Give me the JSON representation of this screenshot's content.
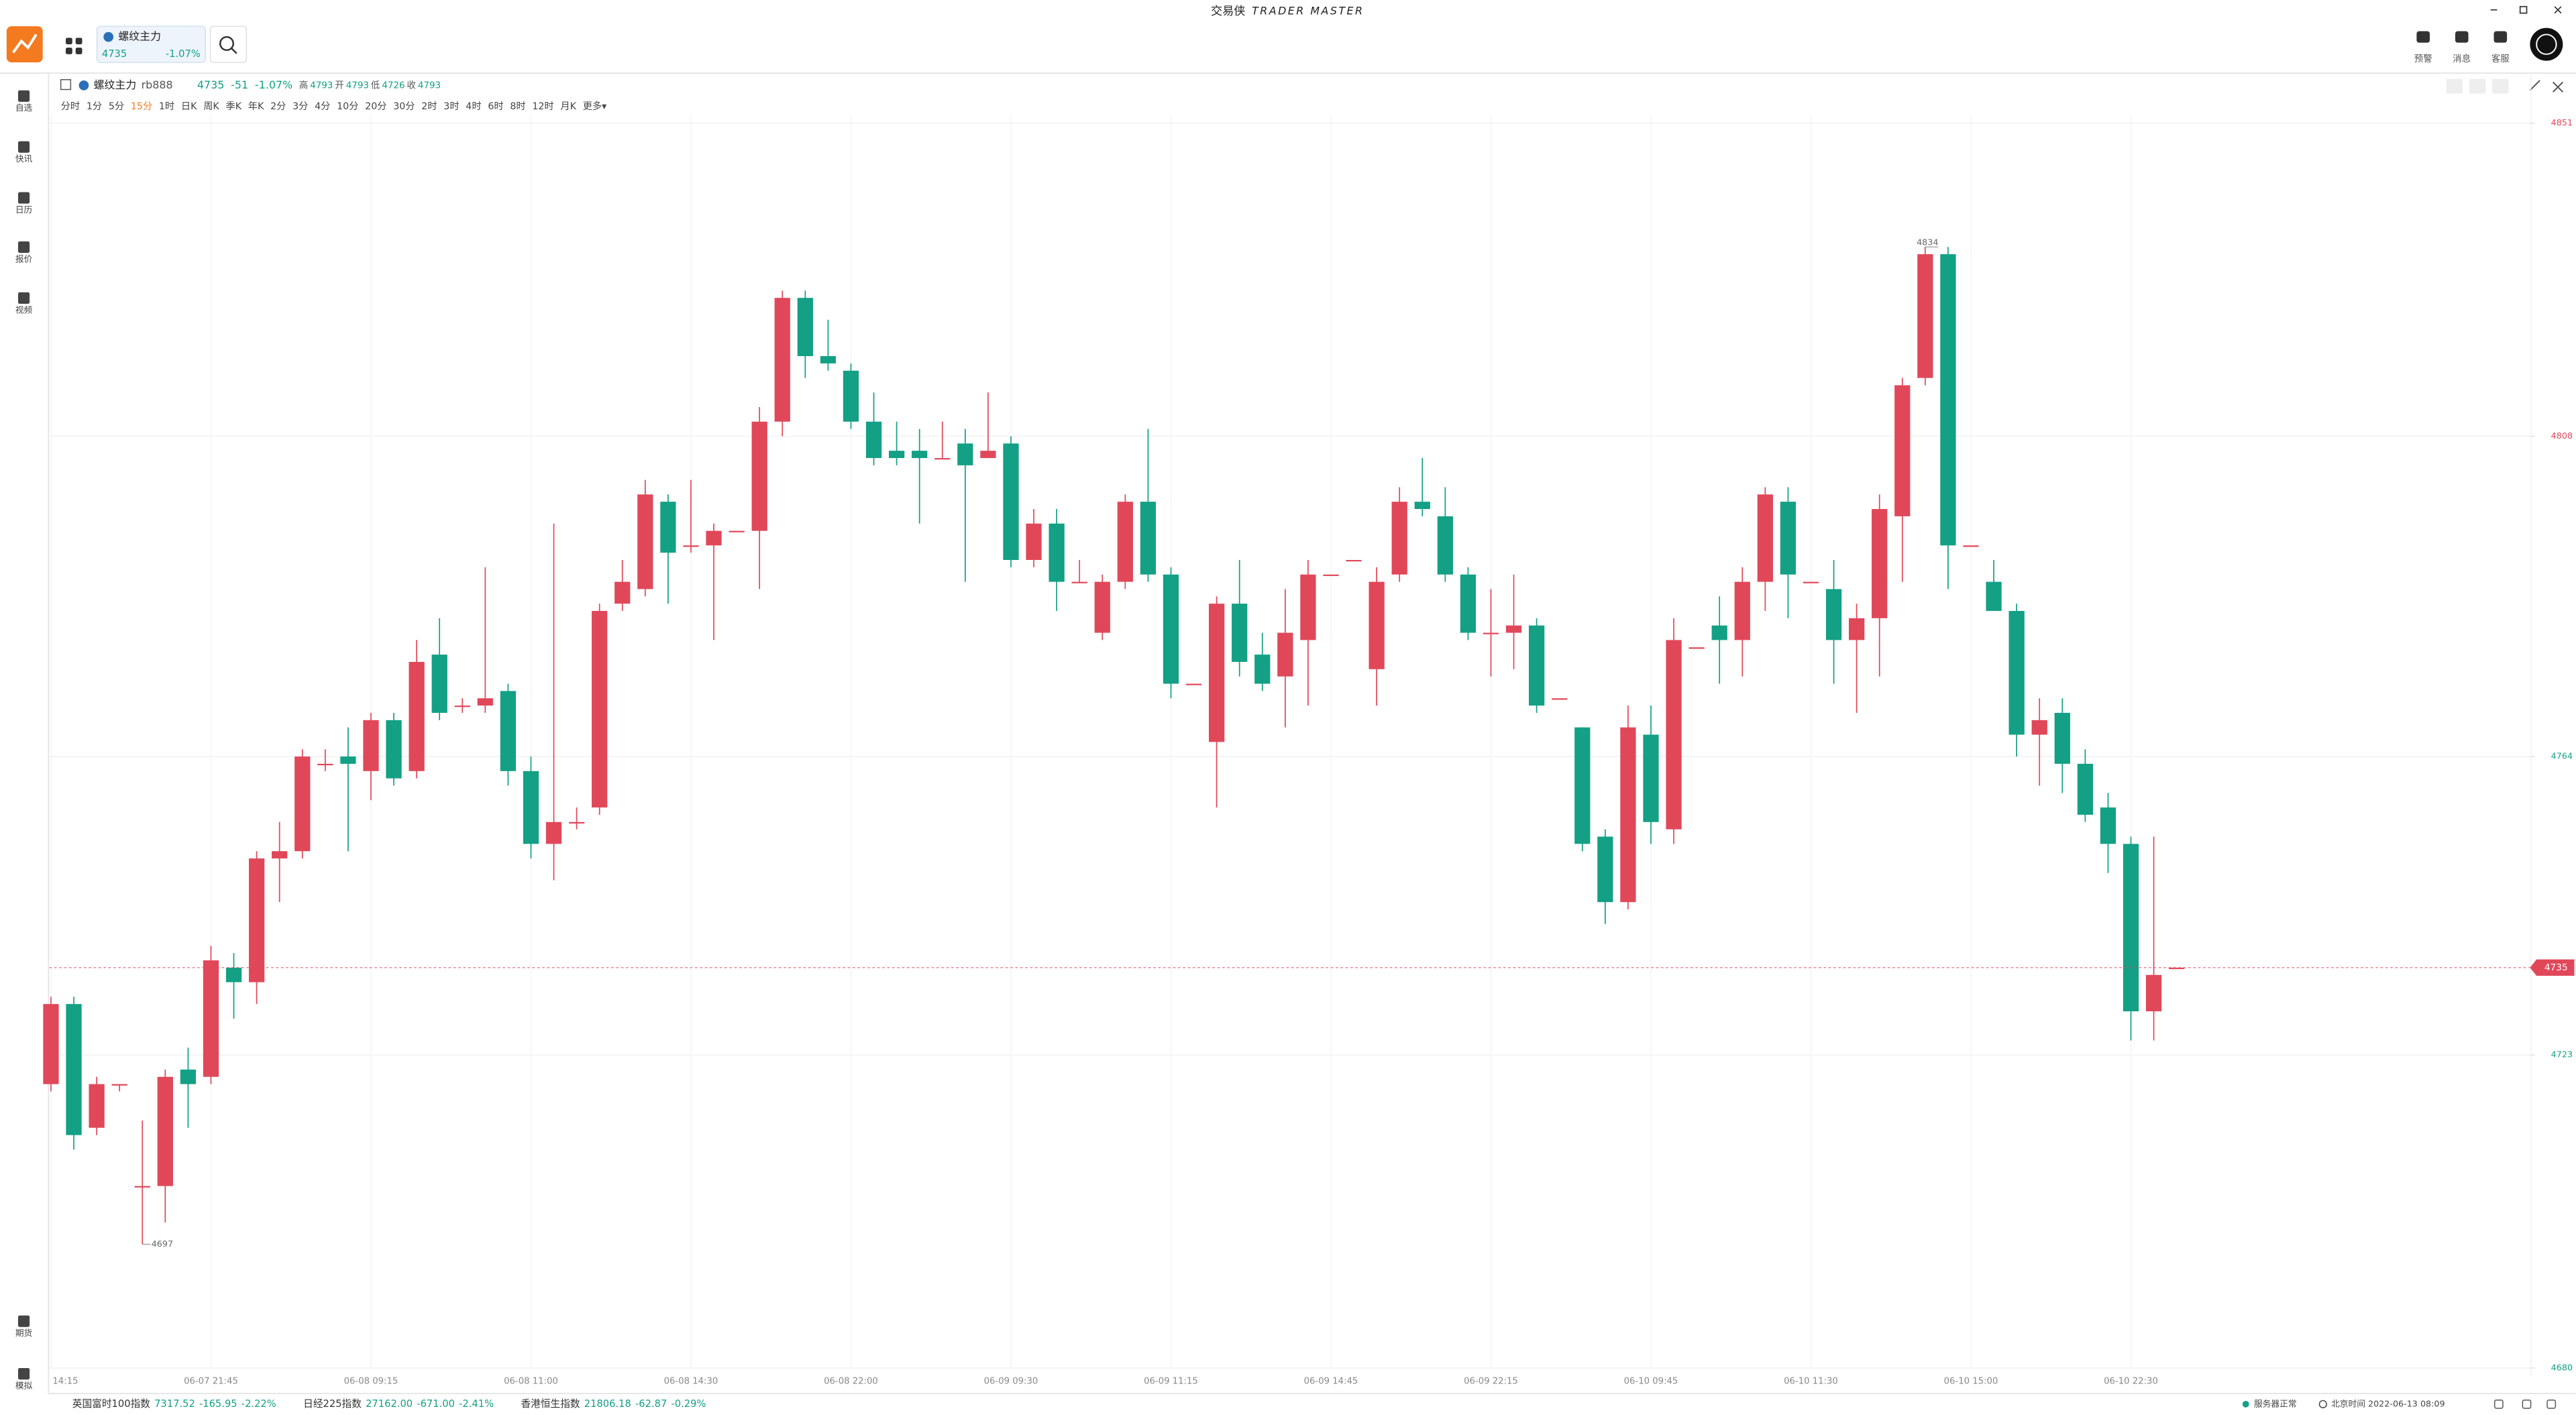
{
  "app": {
    "title": "交易侠",
    "title_en": "TRADER MASTER",
    "tab": {
      "name": "螺纹主力",
      "price": "4735",
      "change": "-1.07%"
    },
    "top_icons": [
      "预警",
      "消息",
      "客服"
    ],
    "nav": [
      "自选",
      "快讯",
      "日历",
      "报价",
      "视频"
    ],
    "nav_bottom": [
      "期货",
      "模拟"
    ]
  },
  "quote": {
    "name": "螺纹主力",
    "code": "rb888",
    "price": "4735",
    "change": "-51",
    "pct": "-1.07%",
    "high_label": "高",
    "high": "4793",
    "open_label": "开",
    "open": "4793",
    "low_label": "低",
    "low": "4726",
    "close_label": "收",
    "close": "4793"
  },
  "timeframes": [
    "分时",
    "1分",
    "5分",
    "15分",
    "1时",
    "日K",
    "周K",
    "季K",
    "年K",
    "2分",
    "3分",
    "4分",
    "10分",
    "20分",
    "30分",
    "2时",
    "3时",
    "4时",
    "6时",
    "8时",
    "12时",
    "月K",
    "更多▾"
  ],
  "active_timeframe": "15分",
  "chart_data": {
    "type": "candlestick",
    "x": [
      "14:15",
      null,
      null,
      null,
      null,
      null,
      null,
      "06-07 21:45",
      null,
      null,
      null,
      null,
      null,
      null,
      "06-08 09:15",
      null,
      null,
      null,
      null,
      null,
      null,
      "06-08 11:00",
      null,
      null,
      null,
      null,
      null,
      null,
      "06-08 14:30",
      null,
      null,
      null,
      null,
      null,
      null,
      "06-08 22:00",
      null,
      null,
      null,
      null,
      null,
      null,
      "06-09 09:30",
      null,
      null,
      null,
      null,
      null,
      null,
      "06-09 11:15",
      null,
      null,
      null,
      null,
      null,
      null,
      "06-09 14:45",
      null,
      null,
      null,
      null,
      null,
      null,
      "06-09 22:15",
      null,
      null,
      null,
      null,
      null,
      null,
      "06-10 09:45",
      null,
      null,
      null,
      null,
      null,
      null,
      "06-10 11:30",
      null,
      null,
      null,
      null,
      null,
      null,
      "06-10 15:00",
      null,
      null,
      null,
      null,
      null,
      null,
      "06-10 22:30",
      null,
      null
    ],
    "open": [
      4719,
      4730,
      4713,
      4719,
      4705,
      4705,
      4721,
      4720,
      4735,
      4733,
      4750,
      4751,
      4763,
      4764,
      4762,
      4769,
      4762,
      4778,
      4771,
      4771,
      4773,
      4762,
      4752,
      4755,
      4757,
      4785,
      4787,
      4799,
      4793,
      4793,
      4795,
      4795,
      4810,
      4827,
      4819,
      4817,
      4810,
      4806,
      4806,
      4805,
      4807,
      4805,
      4807,
      4791,
      4796,
      4788,
      4781,
      4788,
      4799,
      4789,
      4774,
      4766,
      4785,
      4778,
      4775,
      4780,
      4789,
      4791,
      4776,
      4789,
      4799,
      4797,
      4789,
      4781,
      4781,
      4782,
      4772,
      4768,
      4753,
      4744,
      4767,
      4754,
      4779,
      4782,
      4780,
      4788,
      4799,
      4788,
      4787,
      4780,
      4783,
      4797,
      4816,
      4833,
      4793,
      4788,
      4784,
      4767,
      4770,
      4763,
      4757,
      4752,
      4729,
      4735
    ],
    "high": [
      4731,
      4731,
      4720,
      4719,
      4714,
      4721,
      4724,
      4738,
      4737,
      4751,
      4755,
      4765,
      4765,
      4768,
      4770,
      4770,
      4780,
      4783,
      4772,
      4790,
      4774,
      4764,
      4796,
      4757,
      4785,
      4791,
      4802,
      4800,
      4802,
      4796,
      4795,
      4812,
      4828,
      4828,
      4824,
      4818,
      4814,
      4810,
      4809,
      4810,
      4809,
      4814,
      4808,
      4798,
      4798,
      4791,
      4789,
      4800,
      4809,
      4790,
      4774,
      4786,
      4791,
      4781,
      4787,
      4791,
      4789,
      4791,
      4790,
      4801,
      4805,
      4801,
      4790,
      4787,
      4789,
      4783,
      4772,
      4768,
      4754,
      4771,
      4771,
      4783,
      4779,
      4786,
      4790,
      4801,
      4801,
      4788,
      4791,
      4785,
      4800,
      4816,
      4834,
      4834,
      4793,
      4791,
      4785,
      4772,
      4772,
      4765,
      4759,
      4753,
      4753,
      4735
    ],
    "low": [
      4718,
      4710,
      4712,
      4718,
      4697,
      4700,
      4713,
      4719,
      4728,
      4730,
      4744,
      4750,
      4762,
      4751,
      4758,
      4760,
      4761,
      4769,
      4770,
      4770,
      4760,
      4750,
      4747,
      4754,
      4756,
      4784,
      4786,
      4785,
      4792,
      4780,
      4795,
      4787,
      4808,
      4816,
      4817,
      4809,
      4804,
      4804,
      4796,
      4805,
      4788,
      4805,
      4790,
      4790,
      4784,
      4788,
      4780,
      4787,
      4788,
      4772,
      4774,
      4757,
      4775,
      4773,
      4768,
      4771,
      4789,
      4791,
      4771,
      4788,
      4797,
      4788,
      4780,
      4775,
      4776,
      4770,
      4772,
      4751,
      4741,
      4743,
      4752,
      4752,
      4779,
      4774,
      4775,
      4784,
      4783,
      4788,
      4774,
      4770,
      4775,
      4788,
      4815,
      4787,
      4793,
      4784,
      4764,
      4760,
      4759,
      4755,
      4748,
      4725,
      4725,
      4735
    ],
    "close": [
      4730,
      4712,
      4719,
      4719,
      4705,
      4720,
      4719,
      4736,
      4733,
      4750,
      4751,
      4764,
      4763,
      4763,
      4769,
      4761,
      4777,
      4770,
      4771,
      4772,
      4762,
      4752,
      4755,
      4755,
      4784,
      4788,
      4800,
      4792,
      4793,
      4795,
      4795,
      4810,
      4827,
      4819,
      4818,
      4810,
      4805,
      4805,
      4805,
      4805,
      4804,
      4806,
      4791,
      4796,
      4788,
      4788,
      4788,
      4799,
      4789,
      4774,
      4774,
      4785,
      4777,
      4774,
      4781,
      4789,
      4789,
      4791,
      4788,
      4799,
      4798,
      4789,
      4781,
      4781,
      4782,
      4771,
      4772,
      4752,
      4744,
      4768,
      4755,
      4780,
      4779,
      4780,
      4788,
      4800,
      4789,
      4788,
      4780,
      4783,
      4798,
      4815,
      4833,
      4793,
      4793,
      4784,
      4767,
      4769,
      4763,
      4756,
      4752,
      4729,
      4734,
      4735
    ],
    "up_color": "#e0485a",
    "down_color": "#13a085",
    "ylim": [
      4680,
      4851
    ],
    "yticks": [
      4851,
      4808,
      4764,
      4723,
      4680
    ],
    "grid": true,
    "last_price": 4735,
    "high_mark": 4834,
    "low_mark": 4697
  },
  "status": {
    "indices": [
      {
        "name": "英国富时100指数",
        "value": "7317.52",
        "change": "-165.95",
        "pct": "-2.22%"
      },
      {
        "name": "日经225指数",
        "value": "27162.00",
        "change": "-671.00",
        "pct": "-2.41%"
      },
      {
        "name": "香港恒生指数",
        "value": "21806.18",
        "change": "-62.87",
        "pct": "-0.29%"
      }
    ],
    "server": "服务器正常",
    "time": "北京时间 2022-06-13 08:09"
  }
}
